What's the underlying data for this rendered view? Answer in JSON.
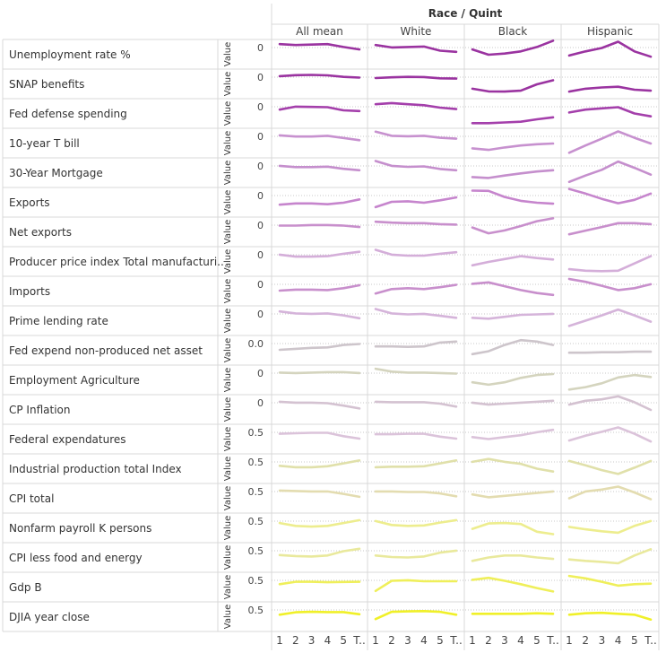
{
  "chart_data": {
    "type": "line",
    "title": "Race / Quint",
    "columns": [
      "All mean",
      "White",
      "Black",
      "Hispanic"
    ],
    "x_ticks": [
      "1",
      "2",
      "3",
      "4",
      "5",
      "T.."
    ],
    "y_axis_label": "Value",
    "rows": [
      {
        "label": "Unemployment rate %",
        "tick": "0",
        "color": "#9a33a0",
        "series": [
          [
            0.92,
            0.88,
            0.9,
            0.92,
            0.8,
            0.7
          ],
          [
            0.88,
            0.78,
            0.8,
            0.82,
            0.65,
            0.6
          ],
          [
            0.7,
            0.48,
            0.53,
            0.62,
            0.8,
            1.06
          ],
          [
            0.45,
            0.62,
            0.76,
            1.02,
            0.62,
            0.4
          ]
        ]
      },
      {
        "label": "SNAP benefits",
        "tick": "0",
        "color": "#9a33a0",
        "series": [
          [
            0.82,
            0.86,
            0.87,
            0.85,
            0.79,
            0.76
          ],
          [
            0.74,
            0.77,
            0.79,
            0.78,
            0.73,
            0.72
          ],
          [
            0.3,
            0.19,
            0.18,
            0.22,
            0.48,
            0.65
          ],
          [
            0.18,
            0.3,
            0.35,
            0.38,
            0.26,
            0.22
          ]
        ]
      },
      {
        "label": "Fed defense spending",
        "tick": "0",
        "color": "#a43fab",
        "series": [
          [
            0.66,
            0.78,
            0.77,
            0.76,
            0.63,
            0.6
          ],
          [
            0.88,
            0.93,
            0.88,
            0.84,
            0.74,
            0.68
          ],
          [
            0.1,
            0.1,
            0.13,
            0.16,
            0.26,
            0.34
          ],
          [
            0.54,
            0.66,
            0.71,
            0.76,
            0.5,
            0.38
          ]
        ]
      },
      {
        "label": "10-year T bill",
        "tick": "0",
        "color": "#c791cf",
        "series": [
          [
            0.82,
            0.77,
            0.77,
            0.8,
            0.71,
            0.62
          ],
          [
            0.97,
            0.8,
            0.78,
            0.8,
            0.72,
            0.68
          ],
          [
            0.28,
            0.22,
            0.32,
            0.4,
            0.45,
            0.48
          ],
          [
            0.1,
            0.4,
            0.68,
            0.98,
            0.72,
            0.48
          ]
        ]
      },
      {
        "label": "30-Year Mortgage",
        "tick": "0",
        "color": "#c58fcd",
        "series": [
          [
            0.78,
            0.73,
            0.73,
            0.75,
            0.66,
            0.6
          ],
          [
            0.98,
            0.78,
            0.74,
            0.76,
            0.65,
            0.6
          ],
          [
            0.32,
            0.28,
            0.38,
            0.47,
            0.55,
            0.6
          ],
          [
            0.12,
            0.38,
            0.62,
            0.96,
            0.7,
            0.42
          ]
        ]
      },
      {
        "label": "Exports",
        "tick": "0",
        "color": "#c685cd",
        "series": [
          [
            0.4,
            0.45,
            0.45,
            0.42,
            0.48,
            0.62
          ],
          [
            0.3,
            0.52,
            0.54,
            0.48,
            0.58,
            0.7
          ],
          [
            0.98,
            0.97,
            0.72,
            0.56,
            0.48,
            0.44
          ],
          [
            1.05,
            0.86,
            0.64,
            0.46,
            0.6,
            0.86
          ]
        ]
      },
      {
        "label": "Net exports",
        "tick": "0",
        "color": "#c88fcc",
        "series": [
          [
            0.76,
            0.76,
            0.78,
            0.78,
            0.76,
            0.7
          ],
          [
            0.92,
            0.88,
            0.86,
            0.86,
            0.82,
            0.8
          ],
          [
            0.68,
            0.44,
            0.56,
            0.74,
            0.94,
            1.06
          ],
          [
            0.4,
            0.55,
            0.7,
            0.86,
            0.86,
            0.82
          ]
        ]
      },
      {
        "label": "Producer price index Total manufacturi..",
        "tick": "0",
        "color": "#d4aed9",
        "series": [
          [
            0.78,
            0.7,
            0.7,
            0.72,
            0.82,
            0.9
          ],
          [
            0.98,
            0.78,
            0.74,
            0.74,
            0.82,
            0.88
          ],
          [
            0.34,
            0.48,
            0.6,
            0.72,
            0.64,
            0.58
          ],
          [
            0.18,
            0.12,
            0.1,
            0.12,
            0.42,
            0.72
          ]
        ]
      },
      {
        "label": "Imports",
        "tick": "0",
        "color": "#c88fcc",
        "series": [
          [
            0.52,
            0.56,
            0.56,
            0.54,
            0.62,
            0.74
          ],
          [
            0.4,
            0.58,
            0.62,
            0.58,
            0.66,
            0.76
          ],
          [
            0.8,
            0.86,
            0.7,
            0.54,
            0.42,
            0.34
          ],
          [
            1.0,
            0.88,
            0.72,
            0.54,
            0.62,
            0.78
          ]
        ]
      },
      {
        "label": "Prime lending rate",
        "tick": "0",
        "color": "#d5b4da",
        "series": [
          [
            0.88,
            0.8,
            0.78,
            0.8,
            0.72,
            0.6
          ],
          [
            0.98,
            0.8,
            0.76,
            0.78,
            0.7,
            0.62
          ],
          [
            0.62,
            0.58,
            0.66,
            0.74,
            0.76,
            0.78
          ],
          [
            0.28,
            0.5,
            0.72,
            0.96,
            0.72,
            0.46
          ]
        ]
      },
      {
        "label": "Fed expend non-produced net asset",
        "tick": "0.0",
        "color": "#cdc5cb",
        "series": [
          [
            0.52,
            0.56,
            0.6,
            0.62,
            0.72,
            0.76
          ],
          [
            0.66,
            0.66,
            0.64,
            0.66,
            0.82,
            0.86
          ],
          [
            0.34,
            0.46,
            0.72,
            0.92,
            0.86,
            0.72
          ],
          [
            0.4,
            0.4,
            0.42,
            0.42,
            0.44,
            0.44
          ]
        ]
      },
      {
        "label": "Employment Agriculture",
        "tick": "0",
        "color": "#d4d4be",
        "series": [
          [
            0.8,
            0.78,
            0.8,
            0.82,
            0.82,
            0.78
          ],
          [
            0.96,
            0.84,
            0.8,
            0.8,
            0.78,
            0.76
          ],
          [
            0.4,
            0.3,
            0.4,
            0.58,
            0.7,
            0.74
          ],
          [
            0.1,
            0.2,
            0.36,
            0.6,
            0.7,
            0.62
          ]
        ]
      },
      {
        "label": "CP Inflation",
        "tick": "0",
        "color": "#d4c2d1",
        "series": [
          [
            0.82,
            0.78,
            0.78,
            0.76,
            0.66,
            0.54
          ],
          [
            0.82,
            0.8,
            0.8,
            0.8,
            0.74,
            0.62
          ],
          [
            0.78,
            0.7,
            0.74,
            0.78,
            0.82,
            0.86
          ],
          [
            0.7,
            0.86,
            0.92,
            1.04,
            0.8,
            0.48
          ]
        ]
      },
      {
        "label": "Federal expendatures",
        "tick": "0.5",
        "color": "#dbc3da",
        "series": [
          [
            0.72,
            0.74,
            0.76,
            0.76,
            0.62,
            0.52
          ],
          [
            0.7,
            0.7,
            0.72,
            0.72,
            0.6,
            0.52
          ],
          [
            0.58,
            0.5,
            0.58,
            0.66,
            0.78,
            0.88
          ],
          [
            0.44,
            0.64,
            0.8,
            0.98,
            0.72,
            0.4
          ]
        ]
      },
      {
        "label": "Industrial production total Index",
        "tick": "0.5",
        "color": "#e0e0aa",
        "series": [
          [
            0.62,
            0.56,
            0.56,
            0.6,
            0.72,
            0.84
          ],
          [
            0.56,
            0.58,
            0.58,
            0.6,
            0.72,
            0.84
          ],
          [
            0.78,
            0.9,
            0.78,
            0.7,
            0.5,
            0.38
          ],
          [
            0.82,
            0.64,
            0.44,
            0.28,
            0.54,
            0.82
          ]
        ]
      },
      {
        "label": "CPI total",
        "tick": "0.5",
        "color": "#e3dcb0",
        "series": [
          [
            0.82,
            0.8,
            0.78,
            0.78,
            0.68,
            0.56
          ],
          [
            0.78,
            0.78,
            0.76,
            0.76,
            0.7,
            0.58
          ],
          [
            0.66,
            0.54,
            0.6,
            0.66,
            0.72,
            0.78
          ],
          [
            0.5,
            0.78,
            0.86,
            0.98,
            0.74,
            0.46
          ]
        ]
      },
      {
        "label": "Nonfarm payroll K persons",
        "tick": "0.5",
        "color": "#eded8e",
        "series": [
          [
            0.7,
            0.58,
            0.55,
            0.58,
            0.7,
            0.82
          ],
          [
            0.78,
            0.62,
            0.58,
            0.6,
            0.72,
            0.82
          ],
          [
            0.46,
            0.68,
            0.7,
            0.66,
            0.34,
            0.24
          ],
          [
            0.54,
            0.44,
            0.36,
            0.3,
            0.58,
            0.78
          ]
        ]
      },
      {
        "label": "CPI less food and energy",
        "tick": "0.5",
        "color": "#e9e99c",
        "series": [
          [
            0.6,
            0.56,
            0.54,
            0.58,
            0.76,
            0.86
          ],
          [
            0.58,
            0.52,
            0.5,
            0.54,
            0.7,
            0.78
          ],
          [
            0.36,
            0.5,
            0.58,
            0.58,
            0.5,
            0.44
          ],
          [
            0.42,
            0.36,
            0.32,
            0.26,
            0.58,
            0.84
          ]
        ]
      },
      {
        "label": "Gdp B",
        "tick": "0.5",
        "color": "#efef5a",
        "series": [
          [
            0.62,
            0.72,
            0.72,
            0.7,
            0.71,
            0.72
          ],
          [
            0.34,
            0.76,
            0.78,
            0.74,
            0.74,
            0.74
          ],
          [
            0.8,
            0.88,
            0.76,
            0.62,
            0.46,
            0.32
          ],
          [
            0.96,
            0.86,
            0.72,
            0.56,
            0.62,
            0.64
          ]
        ]
      },
      {
        "label": "DJIA year close",
        "tick": "0.5",
        "color": "#f0f028",
        "series": [
          [
            0.58,
            0.68,
            0.7,
            0.69,
            0.69,
            0.6
          ],
          [
            0.4,
            0.7,
            0.72,
            0.73,
            0.7,
            0.58
          ],
          [
            0.62,
            0.62,
            0.62,
            0.62,
            0.64,
            0.62
          ],
          [
            0.58,
            0.64,
            0.66,
            0.62,
            0.58,
            0.38
          ]
        ]
      }
    ]
  }
}
